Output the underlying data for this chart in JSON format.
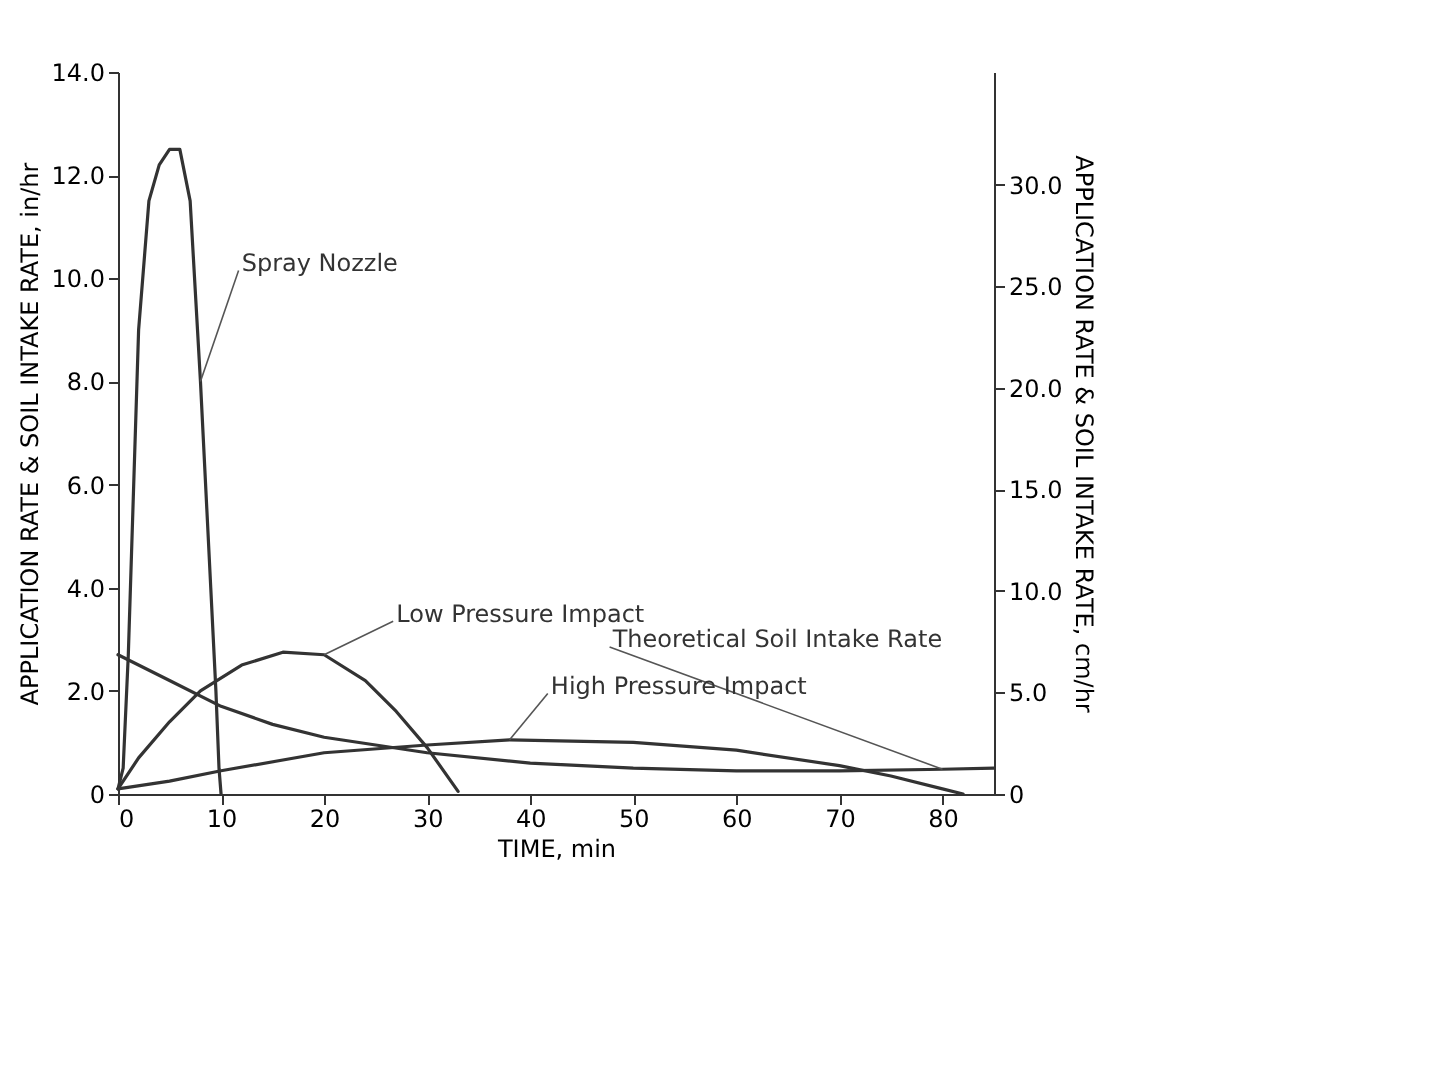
{
  "chart_data": {
    "type": "line",
    "xlabel": "TIME, min",
    "ylabel": "APPLICATION RATE & SOIL INTAKE RATE, in/hr",
    "y2label": "APPLICATION RATE & SOIL INTAKE RATE, cm/hr",
    "xlim": [
      0,
      85
    ],
    "xticks": [
      0,
      10,
      20,
      30,
      40,
      50,
      60,
      70,
      80
    ],
    "ylim": [
      0,
      14
    ],
    "yticks": [
      0,
      {
        "value": 2,
        "label": "2.0"
      },
      {
        "value": 4,
        "label": "4.0"
      },
      {
        "value": 6,
        "label": "6.0"
      },
      {
        "value": 8,
        "label": "8.0"
      },
      {
        "value": 10,
        "label": "10.0"
      },
      {
        "value": 12,
        "label": "12.0"
      },
      {
        "value": 14,
        "label": "14.0"
      }
    ],
    "y2lim": [
      0,
      35.56
    ],
    "y2ticks": [
      0,
      {
        "value": 5,
        "label": "5.0"
      },
      {
        "value": 10,
        "label": "10.0"
      },
      {
        "value": 15,
        "label": "15.0"
      },
      {
        "value": 20,
        "label": "20.0"
      },
      {
        "value": 25,
        "label": "25.0"
      },
      {
        "value": 30,
        "label": "30.0"
      }
    ],
    "grid": false,
    "legend": false,
    "marker": "none",
    "line_style": "solid",
    "series": [
      {
        "name": "Spray Nozzle",
        "color": "#333333",
        "x": [
          0,
          0.5,
          1,
          2,
          3,
          4,
          5,
          6,
          7,
          8,
          9,
          9.5,
          9.8,
          10
        ],
        "values": [
          0.1,
          0.5,
          2.7,
          9,
          11.5,
          12.2,
          12.5,
          12.5,
          11.5,
          8,
          4,
          2,
          0.5,
          0
        ]
      },
      {
        "name": "Low Pressure Impact",
        "color": "#333333",
        "x": [
          0,
          2,
          5,
          8,
          12,
          16,
          20,
          24,
          27,
          30,
          33
        ],
        "values": [
          0.1,
          0.7,
          1.4,
          2,
          2.5,
          2.75,
          2.7,
          2.2,
          1.6,
          0.9,
          0.05
        ]
      },
      {
        "name": "High Pressure Impact",
        "color": "#333333",
        "x": [
          0,
          5,
          10,
          20,
          30,
          38,
          50,
          60,
          70,
          75,
          80,
          82
        ],
        "values": [
          0.1,
          0.25,
          0.45,
          0.8,
          0.95,
          1.05,
          1,
          0.85,
          0.55,
          0.35,
          0.1,
          0
        ]
      },
      {
        "name": "Theoretical Soil Intake Rate",
        "color": "#333333",
        "x": [
          0,
          5,
          10,
          15,
          20,
          30,
          40,
          50,
          60,
          70,
          80,
          85
        ],
        "values": [
          2.7,
          2.2,
          1.7,
          1.35,
          1.1,
          0.8,
          0.6,
          0.5,
          0.45,
          0.45,
          0.48,
          0.5
        ]
      }
    ]
  }
}
